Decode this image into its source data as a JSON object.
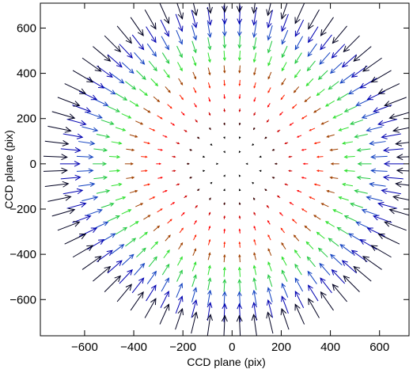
{
  "chart_data": {
    "type": "quiver",
    "title": "",
    "xlabel": "CCD plane (pix)",
    "ylabel": "CCD plane (pix)",
    "xlim": [
      -780,
      720
    ],
    "ylim": [
      -760,
      710
    ],
    "xticks": [
      -600,
      -400,
      -200,
      0,
      200,
      400,
      600
    ],
    "yticks": [
      -600,
      -400,
      -200,
      0,
      200,
      400,
      600
    ],
    "xtick_labels": [
      "−600",
      "−400",
      "−200",
      "0",
      "200",
      "400",
      "600"
    ],
    "ytick_labels": [
      "−600",
      "−400",
      "−200",
      "0",
      "200",
      "400",
      "600"
    ],
    "field": {
      "description_of_values": "Arrows on concentric rings centred at (0,0); each arrow points radially inward toward the centre. Arrow length grows with radius.",
      "rings": [
        {
          "radius": 60,
          "arrows": 6,
          "length": 3,
          "color": "#000000"
        },
        {
          "radius": 120,
          "arrows": 12,
          "length": 6,
          "color": "#000000"
        },
        {
          "radius": 180,
          "arrows": 18,
          "length": 9,
          "color": "#3a0000"
        },
        {
          "radius": 240,
          "arrows": 24,
          "length": 13,
          "color": "#cc0000"
        },
        {
          "radius": 300,
          "arrows": 30,
          "length": 18,
          "color": "#ff0000"
        },
        {
          "radius": 360,
          "arrows": 36,
          "length": 24,
          "color": "#ff2000"
        },
        {
          "radius": 420,
          "arrows": 42,
          "length": 32,
          "color": "#a04000"
        },
        {
          "radius": 480,
          "arrows": 48,
          "length": 42,
          "color": "#2ee02e"
        },
        {
          "radius": 540,
          "arrows": 54,
          "length": 54,
          "color": "#20c840"
        },
        {
          "radius": 600,
          "arrows": 60,
          "length": 66,
          "color": "#1040c0"
        },
        {
          "radius": 660,
          "arrows": 66,
          "length": 80,
          "color": "#0000b0"
        },
        {
          "radius": 720,
          "arrows": 72,
          "length": 96,
          "color": "#000020"
        }
      ]
    },
    "grid": false,
    "legend": "none"
  }
}
